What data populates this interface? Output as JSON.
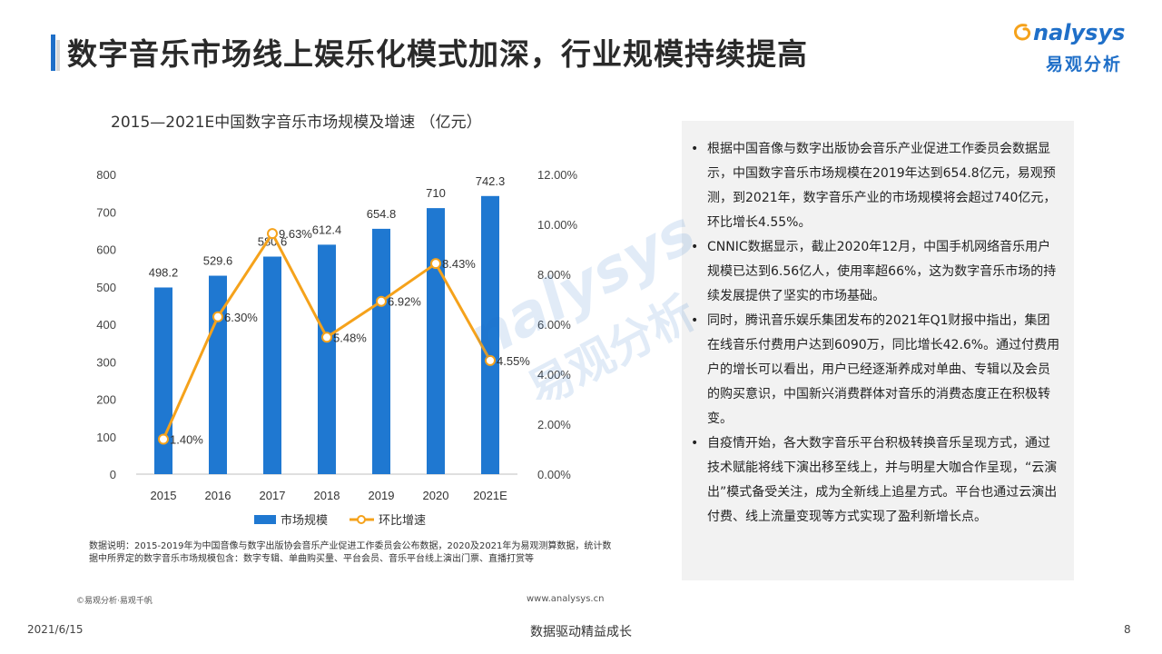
{
  "header": {
    "title": "数字音乐市场线上娱乐化模式加深，行业规模持续提高",
    "logo_en": "nalysys",
    "logo_cn": "易观分析"
  },
  "chart_data": {
    "type": "bar",
    "title": "2015—2021E中国数字音乐市场规模及增速 （亿元）",
    "categories": [
      "2015",
      "2016",
      "2017",
      "2018",
      "2019",
      "2020",
      "2021E"
    ],
    "series": [
      {
        "name": "市场规模",
        "type": "bar",
        "axis": "left",
        "color": "#1f78d1",
        "values": [
          498.2,
          529.6,
          580.6,
          612.4,
          654.8,
          710,
          742.3
        ],
        "labels": [
          "498.2",
          "529.6",
          "580.6",
          "612.4",
          "654.8",
          "710",
          "742.3"
        ]
      },
      {
        "name": "环比增速",
        "type": "line",
        "axis": "right",
        "color": "#f5a21b",
        "values": [
          1.4,
          6.3,
          9.63,
          5.48,
          6.92,
          8.43,
          4.55
        ],
        "labels": [
          "1.40%",
          "6.30%",
          "9.63%",
          "5.48%",
          "6.92%",
          "8.43%",
          "4.55%"
        ]
      }
    ],
    "y_left": {
      "min": 0,
      "max": 800,
      "ticks": [
        "0",
        "100",
        "200",
        "300",
        "400",
        "500",
        "600",
        "700",
        "800"
      ]
    },
    "y_right": {
      "min": 0,
      "max": 12,
      "ticks": [
        "0.00%",
        "2.00%",
        "4.00%",
        "6.00%",
        "8.00%",
        "10.00%",
        "12.00%"
      ]
    },
    "legend": {
      "position": "bottom",
      "items": [
        "市场规模",
        "环比增速"
      ]
    },
    "grid": false
  },
  "note": {
    "text": "数据说明：2015-2019年为中国音像与数字出版协会音乐产业促进工作委员会公布数据，2020及2021年为易观测算数据，统计数据中所界定的数字音乐市场规模包含：数字专辑、单曲购买量、平台会员、音乐平台线上演出门票、直播打赏等"
  },
  "footer": {
    "copyright": "©易观分析·易观千帆",
    "url": "www.analysys.cn"
  },
  "bottom": {
    "date": "2021/6/15",
    "slogan": "数据驱动精益成长",
    "page": "8"
  },
  "panel": {
    "bullet": "•",
    "items": [
      "根据中国音像与数字出版协会音乐产业促进工作委员会数据显示，中国数字音乐市场规模在2019年达到654.8亿元，易观预测，到2021年，数字音乐产业的市场规模将会超过740亿元，环比增长4.55%。",
      "CNNIC数据显示，截止2020年12月，中国手机网络音乐用户规模已达到6.56亿人，使用率超66%，这为数字音乐市场的持续发展提供了坚实的市场基础。",
      "同时，腾讯音乐娱乐集团发布的2021年Q1财报中指出，集团在线音乐付费用户达到6090万，同比增长42.6%。通过付费用户的增长可以看出，用户已经逐渐养成对单曲、专辑以及会员的购买意识，中国新兴消费群体对音乐的消费态度正在积极转变。",
      "自疫情开始，各大数字音乐平台积极转换音乐呈现方式，通过技术赋能将线下演出移至线上，并与明星大咖合作呈现，“云演出”模式备受关注，成为全新线上追星方式。平台也通过云演出付费、线上流量变现等方式实现了盈利新增长点。"
    ]
  },
  "watermark": {
    "en": "nalysys",
    "cn": "易观分析"
  }
}
